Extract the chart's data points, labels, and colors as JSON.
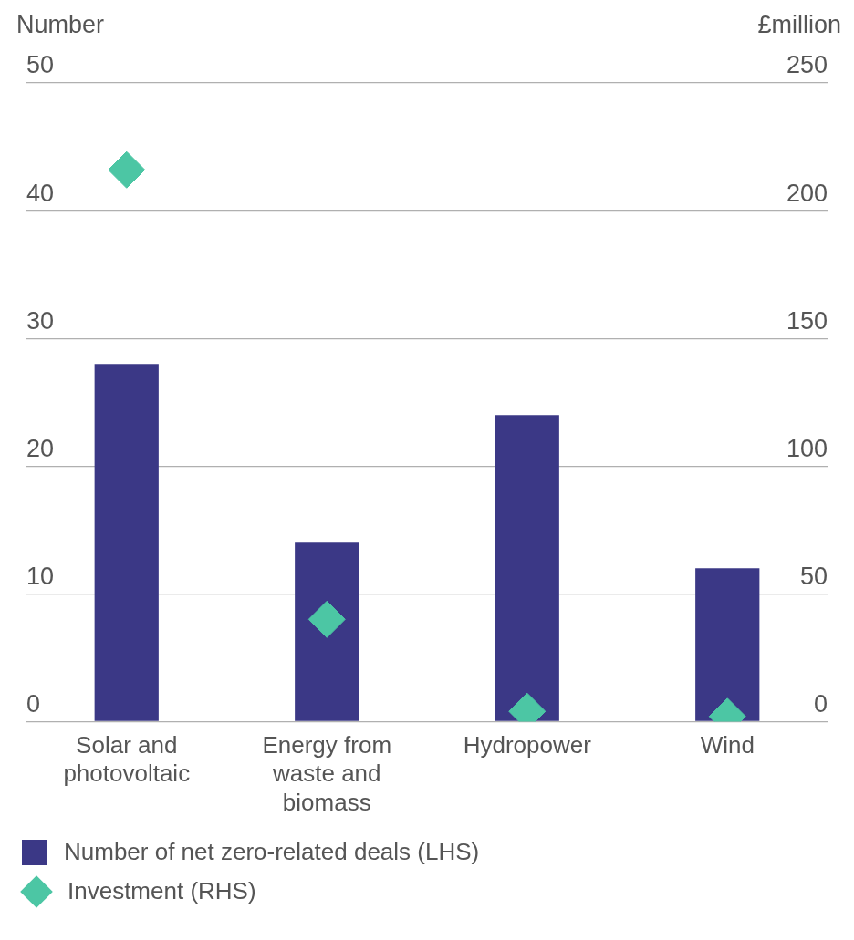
{
  "chart_data": {
    "type": "bar",
    "categories": [
      "Solar and photovoltaic",
      "Energy from waste and biomass",
      "Hydropower",
      "Wind"
    ],
    "series": [
      {
        "name": "Number of net zero-related deals (LHS)",
        "color": "#3b3886",
        "values": [
          28,
          14,
          24,
          12
        ]
      },
      {
        "name": "Investment (RHS)",
        "type": "scatter",
        "axis": "y2",
        "color": "#4cc6a4",
        "marker": "diamond",
        "values": [
          216,
          40,
          4,
          2
        ]
      }
    ],
    "ylabel": "Number",
    "y2label": "£million",
    "ylim": [
      0,
      50
    ],
    "yticks": [
      0,
      10,
      20,
      30,
      40,
      50
    ],
    "y2lim": [
      0,
      250
    ],
    "y2ticks": [
      0,
      50,
      100,
      150,
      200,
      250
    ],
    "grid": "y",
    "legend": "bottom"
  }
}
